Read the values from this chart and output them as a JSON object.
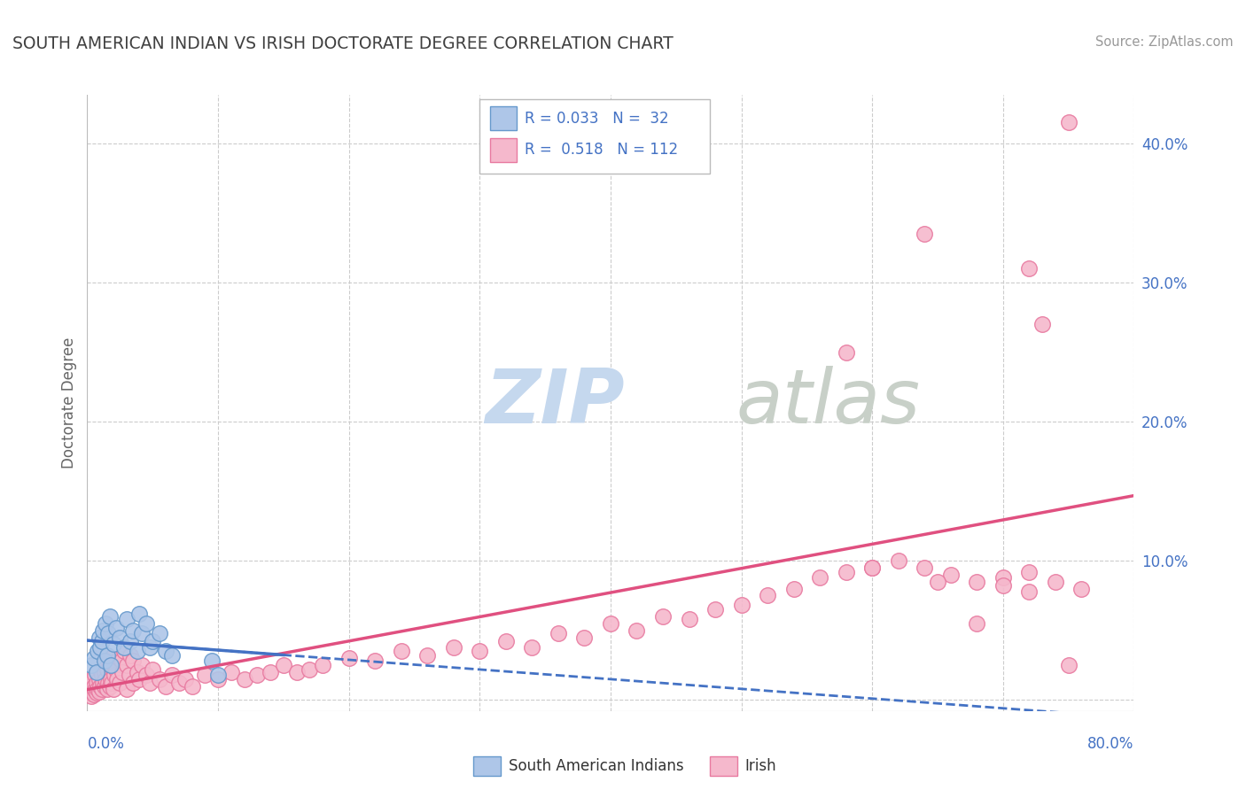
{
  "title": "SOUTH AMERICAN INDIAN VS IRISH DOCTORATE DEGREE CORRELATION CHART",
  "source": "Source: ZipAtlas.com",
  "ylabel": "Doctorate Degree",
  "xlim": [
    0.0,
    0.8
  ],
  "ylim": [
    -0.008,
    0.435
  ],
  "ytick_vals": [
    0.0,
    0.1,
    0.2,
    0.3,
    0.4
  ],
  "ytick_labels": [
    "",
    "10.0%",
    "20.0%",
    "30.0%",
    "40.0%"
  ],
  "blue_face": "#aec6e8",
  "blue_edge": "#6699cc",
  "pink_face": "#f5b8cc",
  "pink_edge": "#e87aa0",
  "blue_line_color": "#4472c4",
  "pink_line_color": "#e05080",
  "watermark_zip_color": "#c5d8ee",
  "watermark_atlas_color": "#c8d0c8",
  "grid_color": "#cccccc",
  "title_color": "#404040",
  "source_color": "#999999",
  "legend_text_color": "#4472c4",
  "axis_label_color": "#4472c4",
  "ylabel_color": "#666666",
  "legend_r1": "R = 0.033",
  "legend_n1": "N =  32",
  "legend_r2": "R =  0.518",
  "legend_n2": "N = 112",
  "sai_x": [
    0.003,
    0.005,
    0.007,
    0.008,
    0.009,
    0.01,
    0.011,
    0.012,
    0.013,
    0.014,
    0.015,
    0.016,
    0.017,
    0.018,
    0.02,
    0.022,
    0.025,
    0.028,
    0.03,
    0.033,
    0.035,
    0.038,
    0.04,
    0.042,
    0.045,
    0.048,
    0.05,
    0.055,
    0.06,
    0.065,
    0.095,
    0.1
  ],
  "sai_y": [
    0.025,
    0.03,
    0.02,
    0.035,
    0.045,
    0.038,
    0.042,
    0.05,
    0.028,
    0.055,
    0.032,
    0.048,
    0.06,
    0.025,
    0.04,
    0.052,
    0.045,
    0.038,
    0.058,
    0.042,
    0.05,
    0.035,
    0.062,
    0.048,
    0.055,
    0.038,
    0.042,
    0.048,
    0.035,
    0.032,
    0.028,
    0.018
  ],
  "irish_x": [
    0.001,
    0.002,
    0.003,
    0.003,
    0.004,
    0.004,
    0.005,
    0.005,
    0.006,
    0.006,
    0.007,
    0.007,
    0.008,
    0.008,
    0.009,
    0.009,
    0.01,
    0.01,
    0.011,
    0.011,
    0.012,
    0.012,
    0.013,
    0.013,
    0.014,
    0.015,
    0.015,
    0.016,
    0.016,
    0.017,
    0.017,
    0.018,
    0.018,
    0.019,
    0.02,
    0.02,
    0.021,
    0.022,
    0.023,
    0.024,
    0.025,
    0.026,
    0.027,
    0.028,
    0.03,
    0.03,
    0.032,
    0.033,
    0.035,
    0.035,
    0.038,
    0.04,
    0.042,
    0.045,
    0.048,
    0.05,
    0.055,
    0.06,
    0.065,
    0.07,
    0.075,
    0.08,
    0.09,
    0.1,
    0.11,
    0.12,
    0.13,
    0.14,
    0.15,
    0.16,
    0.17,
    0.18,
    0.2,
    0.22,
    0.24,
    0.26,
    0.28,
    0.3,
    0.32,
    0.34,
    0.36,
    0.38,
    0.4,
    0.42,
    0.44,
    0.46,
    0.48,
    0.5,
    0.52,
    0.54,
    0.56,
    0.58,
    0.6,
    0.62,
    0.64,
    0.66,
    0.68,
    0.7,
    0.72,
    0.74,
    0.65,
    0.7,
    0.72,
    0.76,
    0.72,
    0.73,
    0.58,
    0.6,
    0.75,
    0.64,
    0.68,
    0.75
  ],
  "irish_y": [
    0.005,
    0.008,
    0.003,
    0.012,
    0.006,
    0.015,
    0.004,
    0.01,
    0.007,
    0.018,
    0.005,
    0.012,
    0.008,
    0.02,
    0.006,
    0.015,
    0.01,
    0.022,
    0.008,
    0.018,
    0.012,
    0.025,
    0.01,
    0.02,
    0.015,
    0.008,
    0.022,
    0.012,
    0.028,
    0.01,
    0.025,
    0.015,
    0.03,
    0.012,
    0.008,
    0.025,
    0.018,
    0.022,
    0.015,
    0.03,
    0.012,
    0.028,
    0.02,
    0.035,
    0.008,
    0.025,
    0.018,
    0.032,
    0.012,
    0.028,
    0.02,
    0.015,
    0.025,
    0.018,
    0.012,
    0.022,
    0.015,
    0.01,
    0.018,
    0.012,
    0.015,
    0.01,
    0.018,
    0.015,
    0.02,
    0.015,
    0.018,
    0.02,
    0.025,
    0.02,
    0.022,
    0.025,
    0.03,
    0.028,
    0.035,
    0.032,
    0.038,
    0.035,
    0.042,
    0.038,
    0.048,
    0.045,
    0.055,
    0.05,
    0.06,
    0.058,
    0.065,
    0.068,
    0.075,
    0.08,
    0.088,
    0.092,
    0.095,
    0.1,
    0.095,
    0.09,
    0.085,
    0.088,
    0.092,
    0.085,
    0.085,
    0.082,
    0.078,
    0.08,
    0.31,
    0.27,
    0.25,
    0.095,
    0.415,
    0.335,
    0.055,
    0.025
  ],
  "figsize": [
    14.06,
    8.92
  ],
  "dpi": 100
}
